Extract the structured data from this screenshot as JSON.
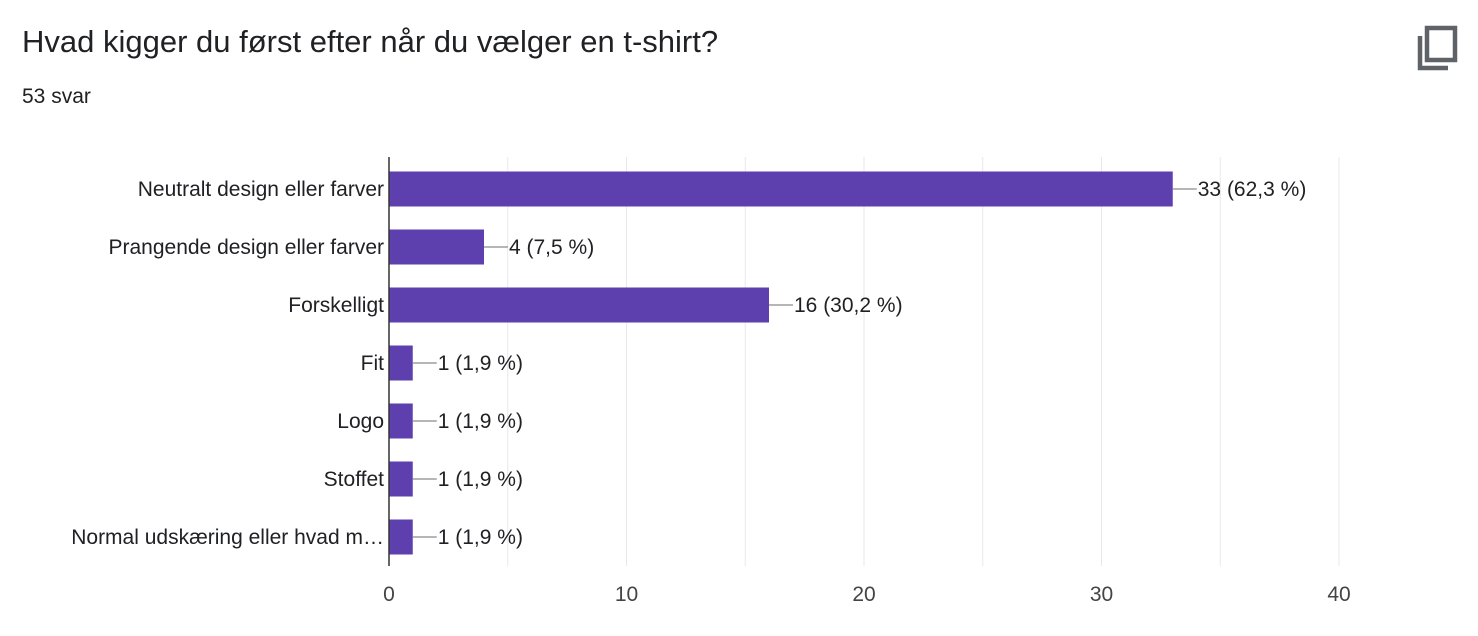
{
  "question": {
    "title": "Hvad kigger du først efter når du vælger en t-shirt?",
    "response_count": "53 svar"
  },
  "toolbar": {
    "copy_icon": "copy-icon"
  },
  "colors": {
    "bar": "#5e3fae",
    "grid": "#e8e8e8",
    "axis": "#333333",
    "connector": "#9e9e9e"
  },
  "chart_data": {
    "type": "bar",
    "orientation": "horizontal",
    "categories": [
      "Neutralt design eller farver",
      "Prangende design eller farver",
      "Forskelligt",
      "Fit",
      "Logo",
      "Stoffet",
      "Normal udskæring eller hvad m…"
    ],
    "values": [
      33,
      4,
      16,
      1,
      1,
      1,
      1
    ],
    "data_labels": [
      "33 (62,3 %)",
      "4 (7,5 %)",
      "16 (30,2 %)",
      "1 (1,9 %)",
      "1 (1,9 %)",
      "1 (1,9 %)",
      "1 (1,9 %)"
    ],
    "xlim": [
      0,
      40
    ],
    "xticks": [
      0,
      10,
      20,
      30,
      40
    ],
    "xtick_labels": [
      "0",
      "10",
      "20",
      "30",
      "40"
    ],
    "minor_grid_step": 5,
    "grid": true,
    "legend": "none"
  }
}
